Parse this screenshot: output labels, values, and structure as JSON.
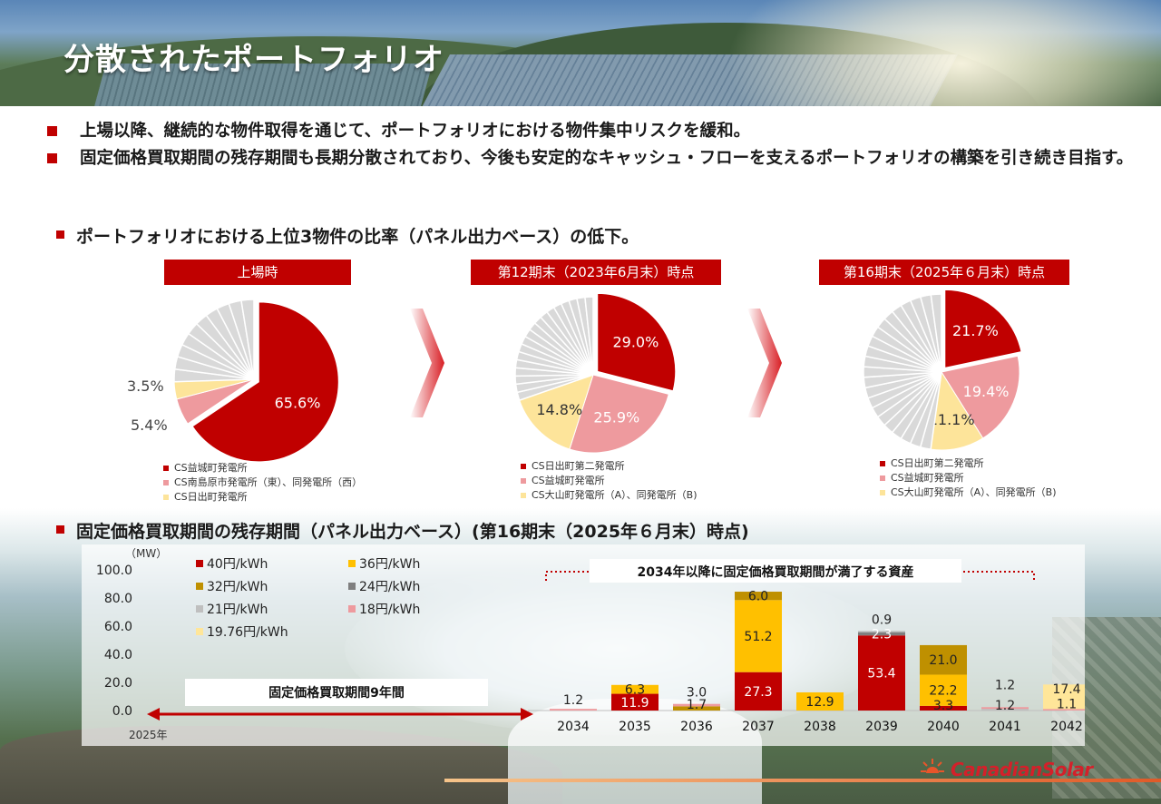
{
  "title": "分散されたポートフォリオ",
  "bullets": [
    "上場以降、継続的な物件取得を通じて、ポートフォリオにおける物件集中リスクを緩和。",
    "固定価格買取期間の残存期間も長期分散されており、今後も安定的なキャッシュ・フローを支えるポートフォリオの構築を引き続き目指す。"
  ],
  "section1_title": "ポートフォリオにおける上位3物件の比率（パネル出力ベース）の低下。",
  "section2_title": "固定価格買取期間の残存期間（パネル出力ベース）(第16期末（2025年６月末）時点)",
  "colors": {
    "red": "#c00000",
    "pink": "#ee9a9e",
    "lightyellow": "#fde49a",
    "gray": "#d9d9d9"
  },
  "chart_data": [
    {
      "type": "pie",
      "title": "上場時",
      "slices": [
        {
          "name": "CS益城町発電所",
          "value": 65.6,
          "label": "65.6%",
          "color": "#c00000"
        },
        {
          "name": "CS南島原市発電所（東）、同発電所（西）",
          "value": 5.4,
          "label": "5.4%",
          "color": "#ee9a9e"
        },
        {
          "name": "CS日出町発電所",
          "value": 3.5,
          "label": "3.5%",
          "color": "#fde49a"
        }
      ],
      "others_count": 10
    },
    {
      "type": "pie",
      "title": "第12期末（2023年6月末）時点",
      "slices": [
        {
          "name": "CS日出町第二発電所",
          "value": 29.0,
          "label": "29.0%",
          "color": "#c00000"
        },
        {
          "name": "CS益城町発電所",
          "value": 25.9,
          "label": "25.9%",
          "color": "#ee9a9e"
        },
        {
          "name": "CS大山町発電所（A）、同発電所（B)",
          "value": 14.8,
          "label": "14.8%",
          "color": "#fde49a"
        }
      ],
      "others_count": 18
    },
    {
      "type": "pie",
      "title": "第16期末（2025年６月末）時点",
      "slices": [
        {
          "name": "CS日出町第二発電所",
          "value": 21.7,
          "label": "21.7%",
          "color": "#c00000"
        },
        {
          "name": "CS益城町発電所",
          "value": 19.4,
          "label": "19.4%",
          "color": "#ee9a9e"
        },
        {
          "name": "CS大山町発電所（A）、同発電所（B)",
          "value": 11.1,
          "label": "11.1%",
          "color": "#fde49a"
        }
      ],
      "others_count": 22
    },
    {
      "type": "bar",
      "stacked": true,
      "ylabel": "（MW）",
      "ylim": [
        0,
        100
      ],
      "yticks": [
        "100.0",
        "80.0",
        "60.0",
        "40.0",
        "20.0",
        "0.0"
      ],
      "categories": [
        "2034",
        "2035",
        "2036",
        "2037",
        "2038",
        "2039",
        "2040",
        "2041",
        "2042"
      ],
      "series": [
        {
          "name": "40円/kWh",
          "color": "#c00000",
          "values": [
            0.0,
            11.9,
            0.0,
            27.3,
            0.0,
            53.4,
            3.3,
            0.0,
            0.0
          ]
        },
        {
          "name": "36円/kWh",
          "color": "#ffc000",
          "values": [
            0.0,
            6.3,
            0.0,
            51.2,
            12.9,
            0.0,
            22.2,
            0.0,
            0.0
          ]
        },
        {
          "name": "32円/kWh",
          "color": "#bf9000",
          "values": [
            0.0,
            0.0,
            3.0,
            6.0,
            0.0,
            0.0,
            21.0,
            0.0,
            0.0
          ]
        },
        {
          "name": "24円/kWh",
          "color": "#7f7f7f",
          "values": [
            0.0,
            0.0,
            0.0,
            0.0,
            0.0,
            2.3,
            0.0,
            0.0,
            0.0
          ]
        },
        {
          "name": "21円/kWh",
          "color": "#bfbfbf",
          "values": [
            0.0,
            0.0,
            0.0,
            0.0,
            0.0,
            0.9,
            0.0,
            1.2,
            0.0
          ]
        },
        {
          "name": "18円/kWh",
          "color": "#ee9a9e",
          "values": [
            1.2,
            0.0,
            1.7,
            0.0,
            0.0,
            0.0,
            0.0,
            1.2,
            1.1
          ]
        },
        {
          "name": "19.76円/kWh",
          "color": "#ffe699",
          "values": [
            0.0,
            0.0,
            0.0,
            0.0,
            0.0,
            0.0,
            0.0,
            0.0,
            17.4
          ]
        }
      ],
      "annotations": {
        "bracket": "2034年以降に固定価格買取期間が満了する資産",
        "period": "固定価格買取期間9年間",
        "start": "2025年"
      }
    }
  ],
  "logo": "CanadianSolar"
}
